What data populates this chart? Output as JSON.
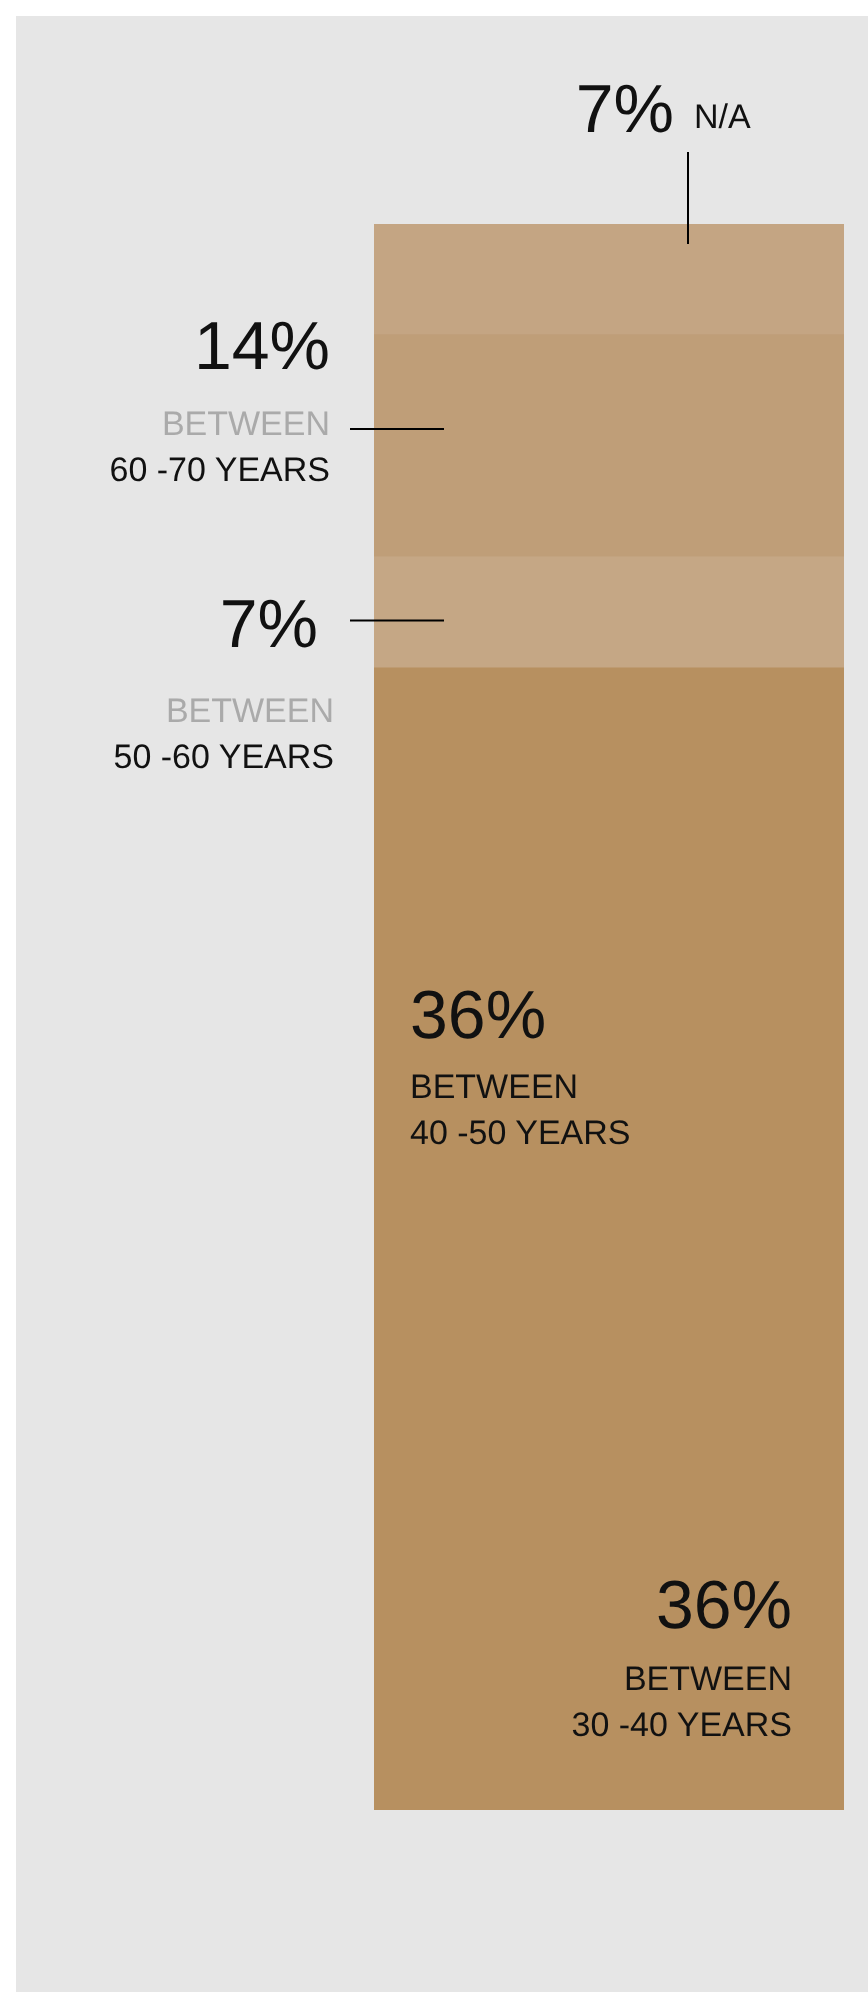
{
  "chart_data": {
    "type": "bar",
    "stacked": true,
    "categories": [
      null
    ],
    "tick_labels": false,
    "legend": false,
    "series": [
      {
        "name": "BETWEEN 30 -40 YEARS",
        "color": "#b79060",
        "values": [
          36
        ],
        "value_labels": [
          "36%"
        ]
      },
      {
        "name": "BETWEEN 40 -50 YEARS",
        "color": "#b79060",
        "values": [
          36
        ],
        "value_labels": [
          "36%"
        ]
      },
      {
        "name": "BETWEEN 50 -60 YEARS",
        "color": "#c5a785",
        "values": [
          7
        ],
        "value_labels": [
          "7%"
        ]
      },
      {
        "name": "BETWEEN 60 -70 YEARS",
        "color": "#bf9e78",
        "values": [
          14
        ],
        "value_labels": [
          "14%"
        ]
      },
      {
        "name": "N/A",
        "color": "#c4a583",
        "values": [
          7
        ],
        "value_labels": [
          "7%"
        ]
      }
    ]
  }
}
